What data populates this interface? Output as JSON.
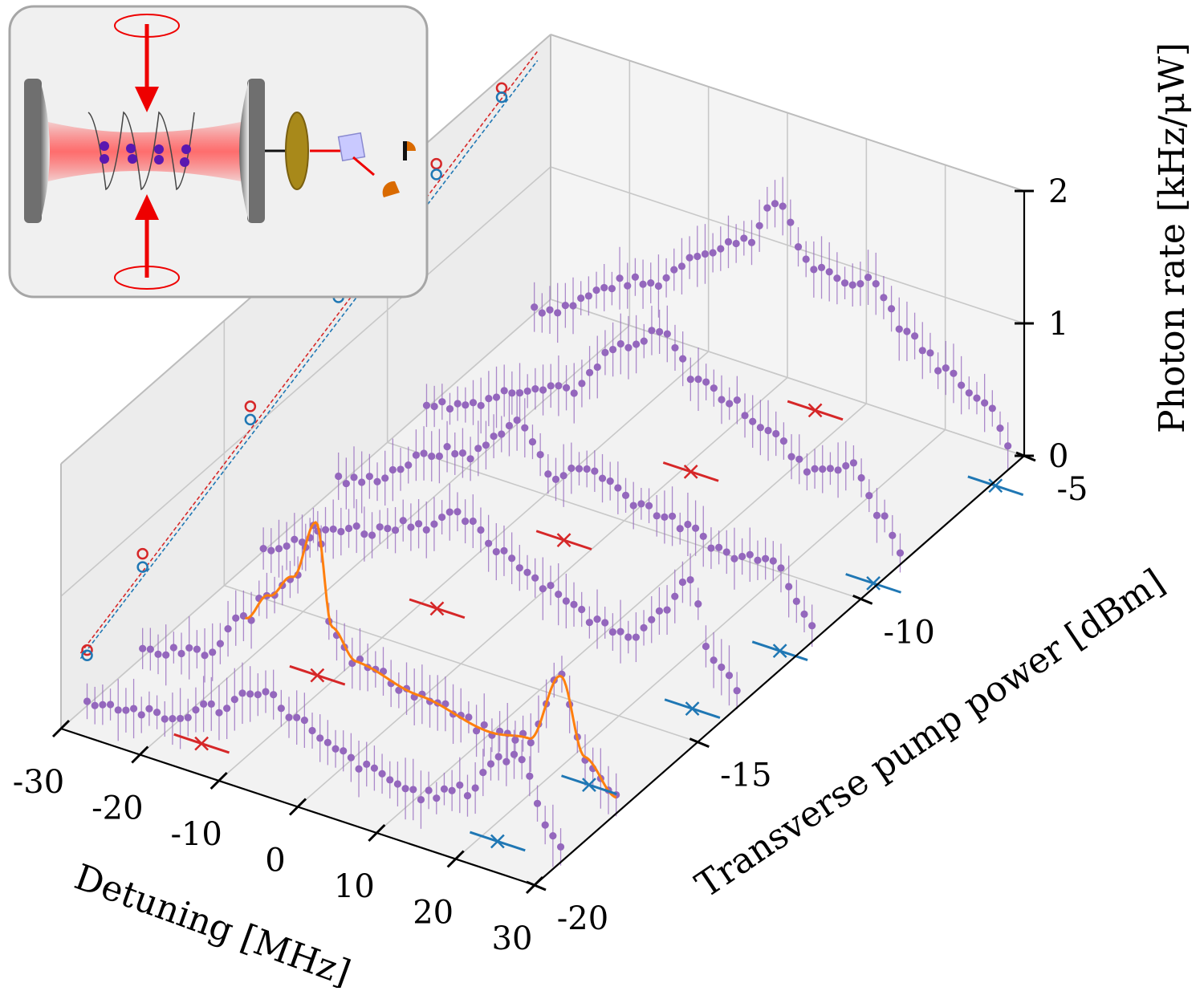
{
  "chart_data": {
    "type": "scatter",
    "projection": "3d",
    "xlabel": "Detuning [MHz]",
    "ylabel": "Transverse pump power [dBm]",
    "zlabel": "Photon rate [kHz/μW]",
    "x_ticks": [
      "-30",
      "-20",
      "-10",
      "0",
      "10",
      "20",
      "30"
    ],
    "y_ticks": [
      "-20",
      "-15",
      "-10",
      "-5"
    ],
    "z_ticks": [
      "0",
      "1",
      "2"
    ],
    "xlim": [
      -30,
      30
    ],
    "ylim": [
      -20,
      -5
    ],
    "zlim": [
      0,
      2
    ],
    "grid": true,
    "colors": {
      "data": "#9467bd",
      "fit": "#ff7f0e",
      "marker_red": "#d62728",
      "marker_blue": "#1f77b4"
    },
    "series": [
      {
        "pump_dBm": -19.2,
        "profile": [
          [
            -30,
            0.05
          ],
          [
            -20,
            0.1
          ],
          [
            -14,
            0.3
          ],
          [
            -8,
            0.55
          ],
          [
            -3,
            0.42
          ],
          [
            0,
            0.3
          ],
          [
            6,
            0.22
          ],
          [
            12,
            0.16
          ],
          [
            18,
            0.3
          ],
          [
            22,
            0.62
          ],
          [
            25,
            0.7
          ],
          [
            28,
            0.28
          ],
          [
            30,
            0.12
          ]
        ]
      },
      {
        "pump_dBm": -17.5,
        "profile": [
          [
            -30,
            0.05
          ],
          [
            -22,
            0.18
          ],
          [
            -17,
            0.55
          ],
          [
            -14,
            0.78
          ],
          [
            -11,
            0.98
          ],
          [
            -8,
            1.45
          ],
          [
            -6,
            0.7
          ],
          [
            -3,
            0.5
          ],
          [
            5,
            0.4
          ],
          [
            14,
            0.3
          ],
          [
            19,
            0.35
          ],
          [
            23,
            0.9
          ],
          [
            26,
            0.35
          ],
          [
            30,
            0.12
          ]
        ],
        "fit": true
      },
      {
        "pump_dBm": -13.8,
        "profile": [
          [
            -30,
            0.05
          ],
          [
            -18,
            0.4
          ],
          [
            -10,
            0.6
          ],
          [
            -5,
            0.75
          ],
          [
            0,
            0.6
          ],
          [
            6,
            0.45
          ],
          [
            12,
            0.3
          ],
          [
            17,
            0.3
          ],
          [
            21,
            0.6
          ],
          [
            24,
            0.82
          ],
          [
            27,
            0.3
          ],
          [
            30,
            0.15
          ]
        ]
      },
      {
        "pump_dBm": -11.5,
        "profile": [
          [
            -30,
            0.05
          ],
          [
            -14,
            0.55
          ],
          [
            -7,
            0.92
          ],
          [
            -3,
            0.62
          ],
          [
            2,
            0.75
          ],
          [
            8,
            0.62
          ],
          [
            14,
            0.55
          ],
          [
            20,
            0.45
          ],
          [
            25,
            0.55
          ],
          [
            28,
            0.3
          ],
          [
            30,
            0.15
          ]
        ]
      },
      {
        "pump_dBm": -8.8,
        "profile": [
          [
            -30,
            0.05
          ],
          [
            -12,
            0.5
          ],
          [
            -5,
            0.95
          ],
          [
            0,
            1.15
          ],
          [
            4,
            0.9
          ],
          [
            9,
            0.8
          ],
          [
            13,
            0.7
          ],
          [
            18,
            0.5
          ],
          [
            24,
            0.62
          ],
          [
            28,
            0.3
          ],
          [
            30,
            0.1
          ]
        ]
      },
      {
        "pump_dBm": -5.5,
        "profile": [
          [
            -30,
            0.05
          ],
          [
            -16,
            0.5
          ],
          [
            -8,
            0.9
          ],
          [
            -3,
            1.1
          ],
          [
            1,
            1.45
          ],
          [
            5,
            1.05
          ],
          [
            9,
            1.0
          ],
          [
            13,
            1.1
          ],
          [
            17,
            0.8
          ],
          [
            22,
            0.6
          ],
          [
            26,
            0.5
          ],
          [
            28,
            0.4
          ],
          [
            30,
            0.2
          ]
        ]
      }
    ],
    "markers_red_x": [
      {
        "x": -15.5,
        "y": -19.2
      },
      {
        "x": -12.0,
        "y": -16.5
      },
      {
        "x": -8.0,
        "y": -13.8
      },
      {
        "x": -3.5,
        "y": -11.0
      },
      {
        "x": 1.0,
        "y": -8.2
      },
      {
        "x": 6.0,
        "y": -5.6
      }
    ],
    "markers_blue_x": [
      {
        "x": 22.0,
        "y": -19.2
      },
      {
        "x": 24.5,
        "y": -17.0
      },
      {
        "x": 26.0,
        "y": -14.2
      },
      {
        "x": 28.0,
        "y": -12.0
      },
      {
        "x": 29.5,
        "y": -9.5
      },
      {
        "x": 30.5,
        "y": -6.0
      }
    ],
    "circles_red": [
      {
        "y": -19.2,
        "z": 0.42
      },
      {
        "y": -17.5,
        "z": 0.78
      },
      {
        "y": -14.2,
        "z": 1.18
      },
      {
        "y": -11.5,
        "z": 1.5
      },
      {
        "y": -8.5,
        "z": 1.78
      },
      {
        "y": -6.5,
        "z": 1.92
      }
    ],
    "circles_blue": [
      {
        "y": -19.2,
        "z": 0.38
      },
      {
        "y": -17.5,
        "z": 0.68
      },
      {
        "y": -14.2,
        "z": 1.08
      },
      {
        "y": -11.5,
        "z": 1.42
      },
      {
        "y": -8.5,
        "z": 1.7
      },
      {
        "y": -6.5,
        "z": 1.85
      }
    ]
  }
}
